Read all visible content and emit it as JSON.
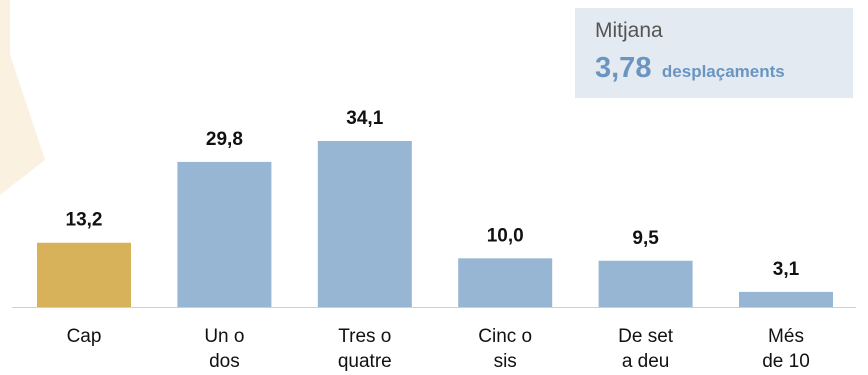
{
  "colors": {
    "highlight": "#d8b25a",
    "bar": "#96b6d3",
    "decoration": "#fbf1e1",
    "mean_box_bg": "#e4eaf2",
    "mean_accent": "#6a95c1",
    "axis": "#cfcfcf"
  },
  "mean": {
    "title": "Mitjana",
    "value": "3,78",
    "unit": "desplaçaments"
  },
  "chart_data": {
    "type": "bar",
    "categories": [
      [
        "Cap"
      ],
      [
        "Un o",
        "dos"
      ],
      [
        "Tres o",
        "quatre"
      ],
      [
        "Cinc o",
        "sis"
      ],
      [
        "De set",
        "a deu"
      ],
      [
        "Més",
        "de 10"
      ]
    ],
    "values": [
      13.2,
      29.8,
      34.1,
      10.0,
      9.5,
      3.1
    ],
    "value_labels": [
      "13,2",
      "29,8",
      "34,1",
      "10,0",
      "9,5",
      "3,1"
    ],
    "highlight_index": 0,
    "ylim": [
      0,
      34.1
    ],
    "grid": false
  }
}
